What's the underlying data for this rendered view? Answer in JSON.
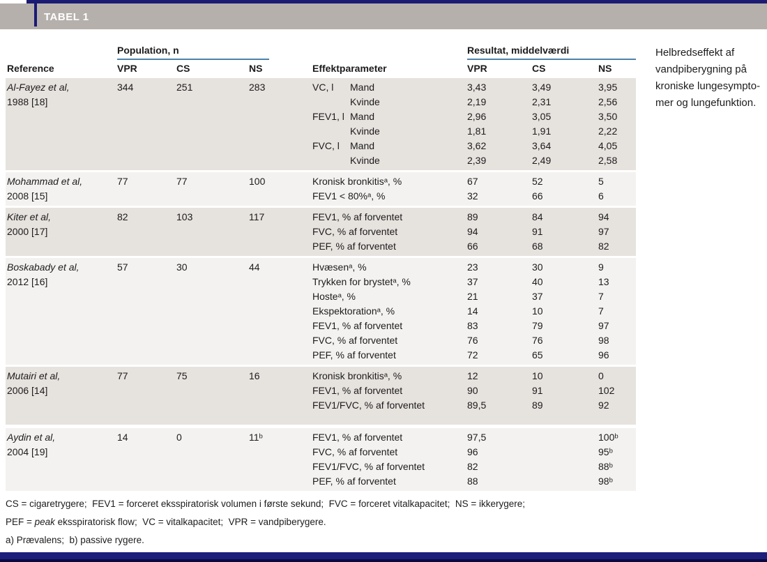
{
  "tag": "TABEL 1",
  "caption": {
    "lines": [
      "Helbredseffekt af",
      "vandpiberygning på",
      "kroniske lungesympto-",
      "mer og lungefunktion."
    ]
  },
  "colors": {
    "navy_bar": "#1b1b73",
    "tag_band_gray": "#b6b0ac",
    "header_underline_blue": "#4e81a8",
    "row_shade_dark": "#e6e2de",
    "row_shade_light": "#f4f2f0"
  },
  "table": {
    "group_headers": [
      {
        "label": "Population, n"
      },
      {
        "label": "Resultat, middelværdi"
      }
    ],
    "columns": [
      "Reference",
      "VPR",
      "CS",
      "NS",
      "Effektparameter",
      "VPR",
      "CS",
      "NS"
    ],
    "rows": [
      {
        "reference": [
          "Al-Fayez et al,",
          "1988 [18]"
        ],
        "population": [
          "344",
          "251",
          "283"
        ],
        "shade": "dark",
        "lines": [
          {
            "param": "VC, l",
            "gender": "Mand",
            "vpr": "3,43",
            "cs": "3,49",
            "ns": "3,95"
          },
          {
            "param": "",
            "gender": "Kvinde",
            "vpr": "2,19",
            "cs": "2,31",
            "ns": "2,56"
          },
          {
            "param": "FEV1, l",
            "gender": "Mand",
            "vpr": "2,96",
            "cs": "3,05",
            "ns": "3,50"
          },
          {
            "param": "",
            "gender": "Kvinde",
            "vpr": "1,81",
            "cs": "1,91",
            "ns": "2,22"
          },
          {
            "param": "FVC, l",
            "gender": "Mand",
            "vpr": "3,62",
            "cs": "3,64",
            "ns": "4,05"
          },
          {
            "param": "",
            "gender": "Kvinde",
            "vpr": "2,39",
            "cs": "2,49",
            "ns": "2,58"
          }
        ]
      },
      {
        "reference": [
          "Mohammad et al,",
          "2008 [15]"
        ],
        "population": [
          "77",
          "77",
          "100"
        ],
        "shade": "light",
        "lines": [
          {
            "param": "Kronisk bronkitisᵃ, %",
            "vpr": "67",
            "cs": "52",
            "ns": "5"
          },
          {
            "param": "FEV1 < 80%ᵃ, %",
            "vpr": "32",
            "cs": "66",
            "ns": "6"
          }
        ]
      },
      {
        "reference": [
          "Kiter et al,",
          "2000 [17]"
        ],
        "population": [
          "82",
          "103",
          "117"
        ],
        "shade": "dark",
        "lines": [
          {
            "param": "FEV1, % af forventet",
            "vpr": "89",
            "cs": "84",
            "ns": "94"
          },
          {
            "param": "FVC, % af forventet",
            "vpr": "94",
            "cs": "91",
            "ns": "97"
          },
          {
            "param": "PEF, % af forventet",
            "vpr": "66",
            "cs": "68",
            "ns": "82"
          }
        ]
      },
      {
        "reference": [
          "Boskabady et al,",
          "2012 [16]"
        ],
        "population": [
          "57",
          "30",
          "44"
        ],
        "shade": "light",
        "lines": [
          {
            "param": "Hvæsenᵃ, %",
            "vpr": "23",
            "cs": "30",
            "ns": "9"
          },
          {
            "param": "Trykken for brystetᵃ, %",
            "vpr": "37",
            "cs": "40",
            "ns": "13"
          },
          {
            "param": "Hosteᵃ, %",
            "vpr": "21",
            "cs": "37",
            "ns": "7"
          },
          {
            "param": "Ekspektorationᵃ, %",
            "vpr": "14",
            "cs": "10",
            "ns": "7"
          },
          {
            "param": "FEV1, % af forventet",
            "vpr": "83",
            "cs": "79",
            "ns": "97"
          },
          {
            "param": "FVC, % af forventet",
            "vpr": "76",
            "cs": "76",
            "ns": "98"
          },
          {
            "param": "PEF, % af forventet",
            "vpr": "72",
            "cs": "65",
            "ns": "96"
          }
        ]
      },
      {
        "reference": [
          "Mutairi et al,",
          "2006 [14]"
        ],
        "population": [
          "77",
          "75",
          "16"
        ],
        "shade": "dark",
        "pad_bottom": true,
        "lines": [
          {
            "param": "Kronisk bronkitisᵃ, %",
            "vpr": "12",
            "cs": "10",
            "ns": "0"
          },
          {
            "param": "FEV1, % af forventet",
            "vpr": "90",
            "cs": "91",
            "ns": "102"
          },
          {
            "param": "FEV1/FVC, % af forventet",
            "vpr": "89,5",
            "cs": "89",
            "ns": "92"
          }
        ]
      },
      {
        "reference": [
          "Aydin et al,",
          "2004 [19]"
        ],
        "population": [
          "14",
          "0",
          "11ᵇ"
        ],
        "shade": "light",
        "gap_before": true,
        "lines": [
          {
            "param": "FEV1, % af forventet",
            "vpr": "97,5",
            "cs": "",
            "ns": "100ᵇ"
          },
          {
            "param": "FVC, % af forventet",
            "vpr": "96",
            "cs": "",
            "ns": "95ᵇ"
          },
          {
            "param": "FEV1/FVC, % af forventet",
            "vpr": "82",
            "cs": "",
            "ns": "88ᵇ"
          },
          {
            "param": "PEF, % af forventet",
            "vpr": "88",
            "cs": "",
            "ns": "98ᵇ"
          }
        ]
      }
    ]
  },
  "footnotes": [
    [
      {
        "t": "CS = cigaretrygere;  FEV1 = forceret eksspiratorisk volumen i første sekund;  FVC = forceret vitalkapacitet;  NS = ikkerygere;"
      }
    ],
    [
      {
        "t": "PEF = "
      },
      {
        "t": "peak",
        "italic": true
      },
      {
        "t": " eksspiratorisk flow;  VC = vitalkapacitet;  VPR = vandpiberygere."
      }
    ],
    [
      {
        "t": "a) Prævalens;  b) passive rygere."
      }
    ]
  ]
}
